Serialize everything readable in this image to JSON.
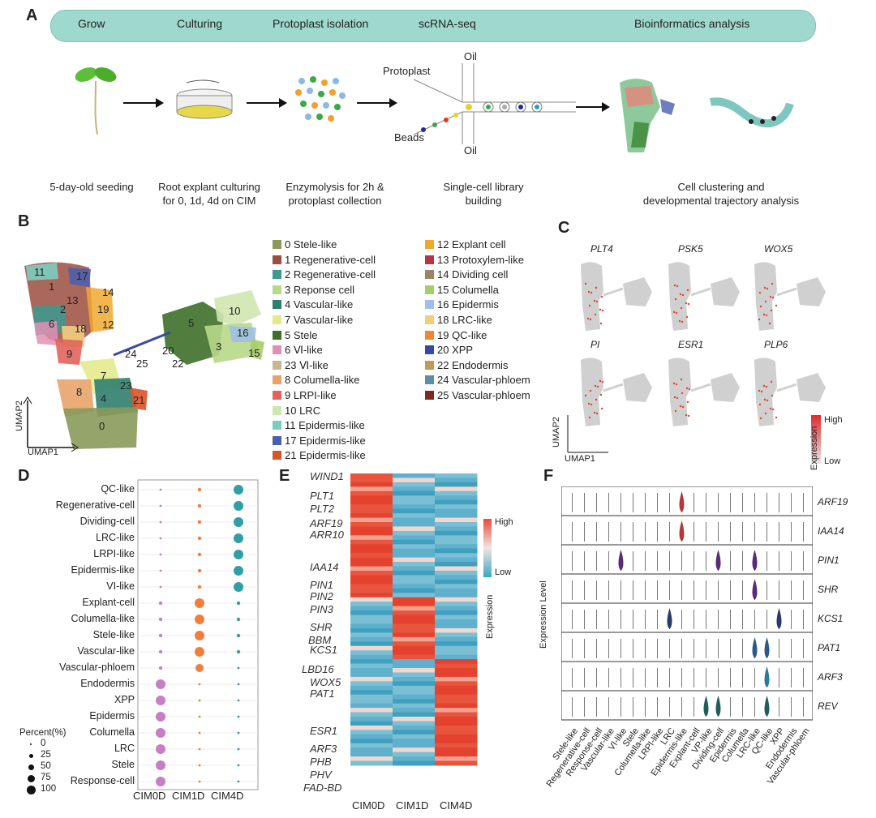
{
  "panels": {
    "a": "A",
    "b": "B",
    "c": "C",
    "d": "D",
    "e": "E",
    "f": "F"
  },
  "workflow": {
    "stages": [
      "Grow",
      "Culturing",
      "Protoplast isolation",
      "scRNA-seq",
      "Bioinformatics analysis"
    ],
    "captions": [
      [
        "5-day-old seeding"
      ],
      [
        "Root explant culturing",
        "for 0, 1d, 4d  on CIM"
      ],
      [
        "Enzymolysis for 2h &",
        "protoplast collection"
      ],
      [
        "Single-cell library",
        "building"
      ],
      [
        "Cell clustering and",
        "developmental trajectory analysis"
      ]
    ],
    "device_labels": {
      "protoplast": "Protoplast",
      "beads": "Beads",
      "oil_top": "Oil",
      "oil_bottom": "Oil"
    }
  },
  "umap": {
    "axis_x": "UMAP1",
    "axis_y": "UMAP2",
    "cluster_numbers": [
      "11",
      "17",
      "1",
      "13",
      "14",
      "2",
      "19",
      "6",
      "18",
      "12",
      "9",
      "10",
      "5",
      "16",
      "3",
      "15",
      "24",
      "20",
      "25",
      "22",
      "7",
      "23",
      "8",
      "4",
      "21",
      "0"
    ],
    "legend_col1": [
      {
        "label": "0  Stele-like",
        "color": "#8a9a5b"
      },
      {
        "label": "1  Regenerative-cell",
        "color": "#9b4d3f"
      },
      {
        "label": "2  Regenerative-cell",
        "color": "#3c9a8f"
      },
      {
        "label": "3  Reponse cell",
        "color": "#b8d88a"
      },
      {
        "label": "4  Vascular-like",
        "color": "#2f7f6f"
      },
      {
        "label": "7  Vascular-like",
        "color": "#e3ea8c"
      },
      {
        "label": "5  Stele",
        "color": "#3e6f2a"
      },
      {
        "label": "6 Ⅵ-like",
        "color": "#e28fb5"
      },
      {
        "label": "23  Ⅵ-like",
        "color": "#c9b78f"
      },
      {
        "label": "8  Columella-like",
        "color": "#e8a36a"
      },
      {
        "label": "9  LRPI-like",
        "color": "#e0645c"
      },
      {
        "label": "10  LRC",
        "color": "#cfe6b0"
      },
      {
        "label": "11  Epidermis-like",
        "color": "#7ccdc0"
      },
      {
        "label": "17  Epidermis-like",
        "color": "#4a5fb0"
      },
      {
        "label": "21  Epidermis-like",
        "color": "#d8542b"
      }
    ],
    "legend_col2": [
      {
        "label": "12 Explant cell",
        "color": "#f0a830"
      },
      {
        "label": "13 Protoxylem-like",
        "color": "#b8334a"
      },
      {
        "label": "14 Dividing cell",
        "color": "#9c8562"
      },
      {
        "label": "15 Columella",
        "color": "#a6cc6b"
      },
      {
        "label": "16 Epidermis",
        "color": "#9fc0e6"
      },
      {
        "label": "18 LRC-like",
        "color": "#f2cd7e"
      },
      {
        "label": "19 QC-like",
        "color": "#ef8a2c"
      },
      {
        "label": "20 XPP",
        "color": "#3949a0"
      },
      {
        "label": "22 Endodermis",
        "color": "#bf9a58"
      },
      {
        "label": "24 Vascular-phloem",
        "color": "#5c8fa6"
      },
      {
        "label": "25 Vascular-phloem",
        "color": "#7d2a1e"
      }
    ]
  },
  "feature_plots": {
    "genes": [
      "PLT4",
      "PSK5",
      "WOX5",
      "PI",
      "ESR1",
      "PLP6"
    ],
    "axis_x": "UMAP1",
    "axis_y": "UMAP2",
    "legend_title": "Expression",
    "legend_high": "High",
    "legend_low": "Low"
  },
  "chart_data": [
    {
      "type": "scatter",
      "title": "",
      "xlabel": "",
      "ylabel": "",
      "categories_x": [
        "CIM0D",
        "CIM1D",
        "CIM4D"
      ],
      "categories_y": [
        "QC-like",
        "Regenerative-cell",
        "Dividing-cell",
        "LRC-like",
        "LRPI-like",
        "Epidermis-like",
        "VI-like",
        "Explant-cell",
        "Columella-like",
        "Stele-like",
        "Vascular-like",
        "Vascular-phloem",
        "Endodermis",
        "XPP",
        "Epidermis",
        "Columella",
        "LRC",
        "Stele",
        "Response-cell"
      ],
      "series": [
        {
          "name": "CIM0D",
          "values": [
            2,
            2,
            2,
            2,
            2,
            2,
            2,
            5,
            5,
            5,
            5,
            5,
            100,
            100,
            100,
            100,
            100,
            100,
            100
          ]
        },
        {
          "name": "CIM1D",
          "values": [
            5,
            5,
            5,
            5,
            5,
            5,
            5,
            100,
            100,
            100,
            100,
            85,
            2,
            2,
            2,
            2,
            2,
            2,
            2
          ]
        },
        {
          "name": "CIM4D",
          "values": [
            100,
            100,
            100,
            100,
            100,
            100,
            100,
            5,
            5,
            5,
            5,
            2,
            2,
            2,
            2,
            2,
            2,
            2,
            2
          ]
        }
      ],
      "size_legend_title": "Percent(%)",
      "size_legend_values": [
        "0",
        "25",
        "50",
        "75",
        "100"
      ]
    },
    {
      "type": "heatmap",
      "title": "",
      "xlabel": "",
      "ylabel": "",
      "columns": [
        "CIM0D",
        "CIM1D",
        "CIM4D"
      ],
      "gene_labels": [
        "WIND1",
        "PLT1",
        "PLT2",
        "ARF19",
        "ARR10",
        "IAA14",
        "PIN1",
        "PIN2",
        "PIN3",
        "SHR",
        "BBM",
        "KCS1",
        "LBD16",
        "WOX5",
        "PAT1",
        "ESR1",
        "ARF3",
        "PHB",
        "PHV",
        "FAD-BD"
      ],
      "legend_title": "Expression",
      "legend_high": "High",
      "legend_low": "Low",
      "blocks": [
        {
          "rows": "top",
          "values": [
            "high",
            "low",
            "low"
          ]
        },
        {
          "rows": "middle",
          "values": [
            "low",
            "high",
            "low"
          ]
        },
        {
          "rows": "bottom",
          "values": [
            "low",
            "low",
            "high"
          ]
        }
      ]
    },
    {
      "type": "violin",
      "title": "",
      "xlabel": "",
      "ylabel": "Expression Level",
      "genes": [
        "ARF19",
        "IAA14",
        "PIN1",
        "SHR",
        "KCS1",
        "PAT1",
        "ARF3",
        "REV"
      ],
      "categories": [
        "Stele-like",
        "Regenerative-cell",
        "Response-cell",
        "Vascular-like",
        "VI-like",
        "Stele",
        "Columella-like",
        "LRPI-like",
        "LRC",
        "Epidermis-like",
        "Explant-cell",
        "VP-like",
        "Dividing-cell",
        "Epidermis",
        "Columella",
        "LRC-like",
        "QC-like",
        "XPP",
        "Endodermis",
        "Vascular-phloem"
      ]
    }
  ]
}
